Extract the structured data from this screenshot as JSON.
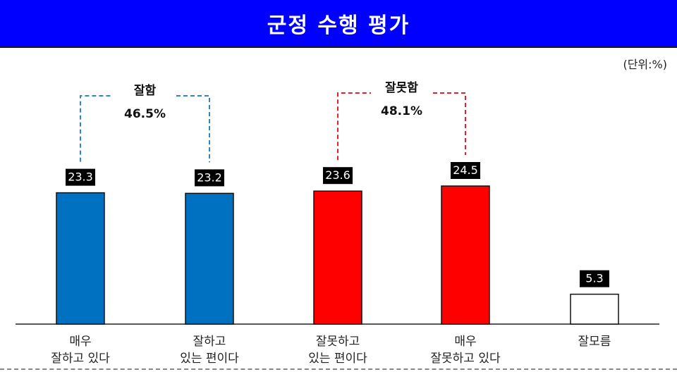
{
  "header": {
    "title": "군정 수행 평가"
  },
  "unit_label": "(단위:%)",
  "chart_data": {
    "type": "bar",
    "title": "군정 수행 평가",
    "categories": [
      [
        "매우",
        "잘하고 있다"
      ],
      [
        "잘하고",
        "있는 편이다"
      ],
      [
        "잘못하고",
        "있는 편이다"
      ],
      [
        "매우",
        "잘못하고 있다"
      ],
      [
        "잘모름"
      ]
    ],
    "values": [
      23.3,
      23.2,
      23.6,
      24.5,
      5.3
    ],
    "value_labels": [
      "23.3",
      "23.2",
      "23.6",
      "24.5",
      "5.3"
    ],
    "colors": [
      "#0070c0",
      "#0070c0",
      "#ff0000",
      "#ff0000",
      "#ffffff"
    ],
    "groups": [
      {
        "label": "잘함",
        "total": "46.5%",
        "members": [
          0,
          1
        ],
        "color": "#2e86c8"
      },
      {
        "label": "잘못함",
        "total": "48.1%",
        "members": [
          2,
          3
        ],
        "color": "#e0202a"
      }
    ],
    "ylim": [
      0,
      30
    ],
    "grid": false
  }
}
